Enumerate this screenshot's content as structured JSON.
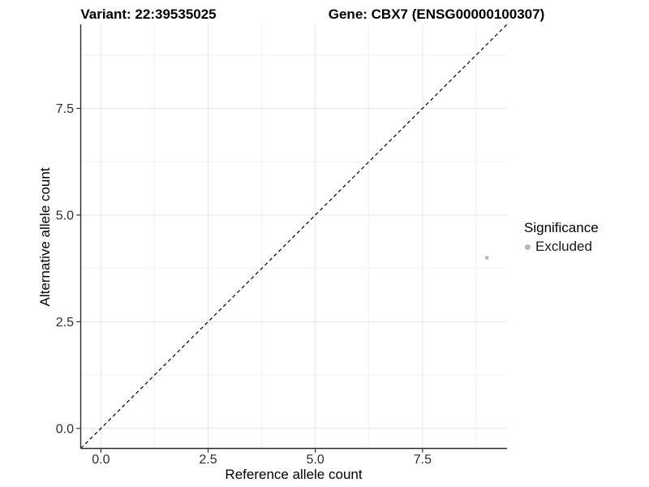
{
  "chart_data": {
    "type": "scatter",
    "title_left": "Variant: 22:39535025",
    "title_right": "Gene: CBX7 (ENSG00000100307)",
    "xlabel": "Reference allele count",
    "ylabel": "Alternative allele count",
    "xlim": [
      -0.47,
      9.47
    ],
    "ylim": [
      -0.47,
      9.47
    ],
    "x_ticks": [
      0,
      2.5,
      5,
      7.5
    ],
    "x_tick_labels": [
      "0.0",
      "2.5",
      "5.0",
      "7.5"
    ],
    "y_ticks": [
      0,
      2.5,
      5,
      7.5
    ],
    "y_tick_labels": [
      "0.0",
      "2.5",
      "5.0",
      "7.5"
    ],
    "minor_breaks": [
      1.25,
      3.75,
      6.25,
      8.75
    ],
    "grid": {
      "on": true,
      "major_color": "#e4e4e4",
      "minor_color": "#f1f1f1"
    },
    "axis_color": "#2a2a2a",
    "background": "#ffffff",
    "identity_line": {
      "slope": 1,
      "intercept": 0,
      "style": "dashed",
      "color": "#000000"
    },
    "series": [
      {
        "name": "Excluded",
        "color": "#b9b9b9",
        "point_radius": 2.4,
        "points": [
          [
            9,
            4
          ]
        ]
      }
    ],
    "legend": {
      "title": "Significance",
      "position": "right",
      "entries": [
        {
          "label": "Excluded",
          "color": "#b9b9b9"
        }
      ]
    }
  }
}
